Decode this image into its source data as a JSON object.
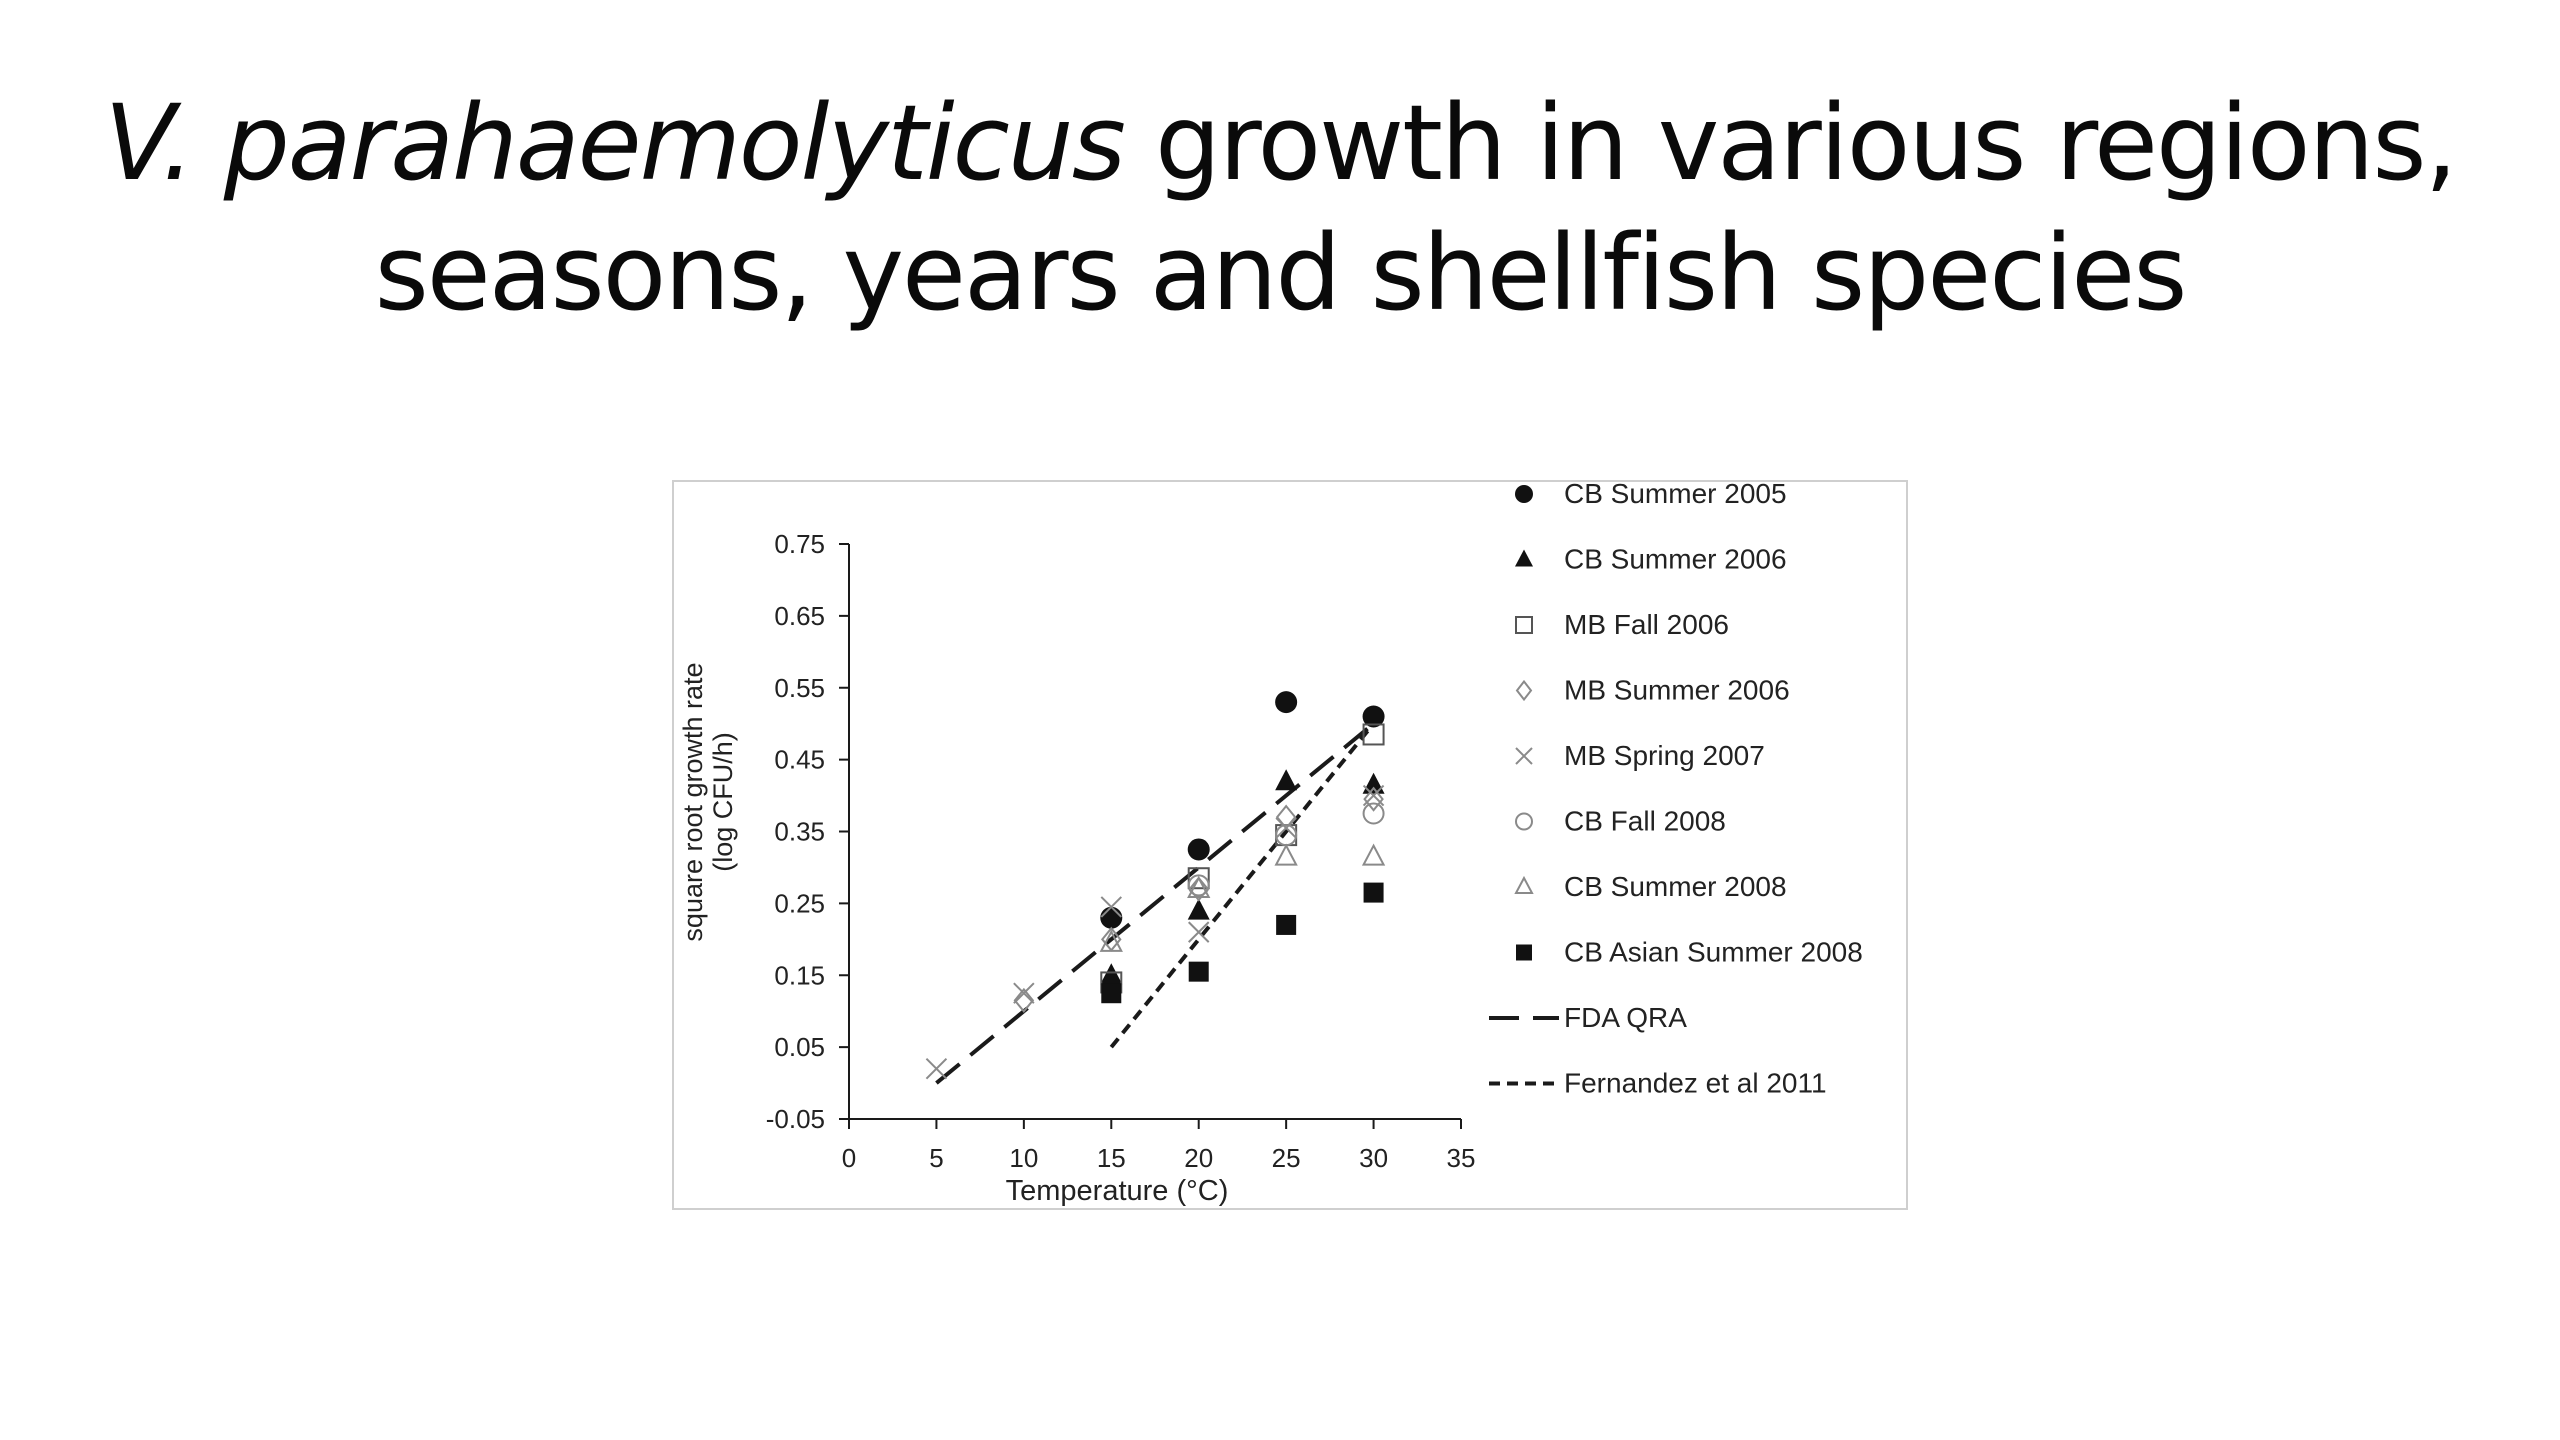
{
  "slide": {
    "title_italic": "V. parahaemolyticus",
    "title_rest_line1": " growth in various regions,",
    "title_line2": "seasons, years and shellfish species"
  },
  "chart_data": {
    "type": "scatter",
    "xlabel": "Temperature (°C)",
    "ylabel_line1": "square root growth rate",
    "ylabel_line2": "(log CFU/h)",
    "xlim": [
      0,
      35
    ],
    "ylim": [
      -0.05,
      0.75
    ],
    "xticks": [
      "0",
      "5",
      "10",
      "15",
      "20",
      "25",
      "30",
      "35"
    ],
    "yticks": [
      "-0.05",
      "0.05",
      "0.15",
      "0.25",
      "0.35",
      "0.45",
      "0.55",
      "0.65",
      "0.75"
    ],
    "grid": false,
    "legend_position": "right",
    "series": [
      {
        "name": "CB Summer 2005",
        "marker": "filled-circle",
        "x": [
          15,
          20,
          25,
          30
        ],
        "y": [
          0.23,
          0.325,
          0.53,
          0.51
        ]
      },
      {
        "name": "CB Summer 2006",
        "marker": "filled-triangle",
        "x": [
          15,
          20,
          25,
          30
        ],
        "y": [
          0.15,
          0.24,
          0.42,
          0.415
        ]
      },
      {
        "name": "MB Fall 2006",
        "marker": "open-square",
        "x": [
          15,
          20,
          25,
          30
        ],
        "y": [
          0.14,
          0.285,
          0.345,
          0.485
        ]
      },
      {
        "name": "MB Summer 2006",
        "marker": "open-diamond",
        "x": [
          10,
          15,
          20,
          25,
          30
        ],
        "y": [
          0.115,
          0.2,
          0.27,
          0.37,
          0.395
        ]
      },
      {
        "name": "MB Spring 2007",
        "marker": "x",
        "x": [
          5,
          10,
          15,
          20,
          25,
          30
        ],
        "y": [
          0.02,
          0.125,
          0.245,
          0.21,
          0.355,
          0.4
        ]
      },
      {
        "name": "CB Fall 2008",
        "marker": "open-circle",
        "x": [
          20,
          25,
          30
        ],
        "y": [
          0.275,
          0.345,
          0.375
        ]
      },
      {
        "name": "CB Summer 2008",
        "marker": "open-triangle",
        "x": [
          15,
          20,
          25,
          30
        ],
        "y": [
          0.195,
          0.27,
          0.315,
          0.315
        ]
      },
      {
        "name": "CB Asian Summer 2008",
        "marker": "filled-square",
        "x": [
          15,
          20,
          25,
          30
        ],
        "y": [
          0.125,
          0.155,
          0.22,
          0.265
        ]
      }
    ],
    "lines": [
      {
        "name": "FDA QRA",
        "style": "long-dash",
        "x": [
          5,
          30
        ],
        "y": [
          0.0,
          0.5
        ]
      },
      {
        "name": "Fernandez et al 2011",
        "style": "short-dash",
        "x": [
          15,
          30
        ],
        "y": [
          0.05,
          0.5
        ]
      }
    ]
  }
}
